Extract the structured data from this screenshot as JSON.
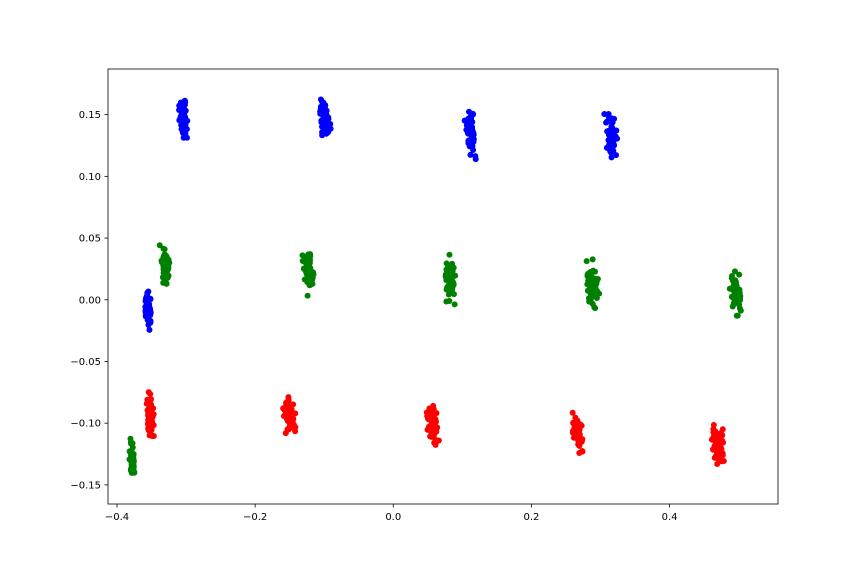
{
  "chart_data": {
    "type": "scatter",
    "title": "",
    "xlabel": "",
    "ylabel": "",
    "xlim": [
      -0.413,
      0.557
    ],
    "ylim": [
      -0.1655,
      0.187
    ],
    "grid": false,
    "legend": "none",
    "x_ticks": [
      "−0.4",
      "−0.2",
      "0.0",
      "0.2",
      "0.4"
    ],
    "x_tick_values": [
      -0.4,
      -0.2,
      0.0,
      0.2,
      0.4
    ],
    "y_ticks": [
      "−0.15",
      "−0.10",
      "−0.05",
      "0.00",
      "0.05",
      "0.10",
      "0.15"
    ],
    "y_tick_values": [
      -0.15,
      -0.1,
      -0.05,
      0.0,
      0.05,
      0.1,
      0.15
    ],
    "series": [
      {
        "color": "#0000ff",
        "clusters": [
          {
            "x": -0.304,
            "y": 0.148,
            "x_spread": 0.006,
            "y_spread": 0.018
          },
          {
            "x": -0.1,
            "y": 0.147,
            "x_spread": 0.008,
            "y_spread": 0.016
          },
          {
            "x": 0.112,
            "y": 0.137,
            "x_spread": 0.008,
            "y_spread": 0.02
          },
          {
            "x": 0.316,
            "y": 0.131,
            "x_spread": 0.008,
            "y_spread": 0.017
          },
          {
            "x": -0.355,
            "y": -0.006,
            "x_spread": 0.004,
            "y_spread": 0.016
          }
        ]
      },
      {
        "color": "#008000",
        "clusters": [
          {
            "x": -0.33,
            "y": 0.028,
            "x_spread": 0.006,
            "y_spread": 0.016
          },
          {
            "x": -0.124,
            "y": 0.024,
            "x_spread": 0.008,
            "y_spread": 0.018
          },
          {
            "x": 0.082,
            "y": 0.017,
            "x_spread": 0.008,
            "y_spread": 0.018
          },
          {
            "x": 0.289,
            "y": 0.012,
            "x_spread": 0.008,
            "y_spread": 0.018
          },
          {
            "x": 0.496,
            "y": 0.004,
            "x_spread": 0.008,
            "y_spread": 0.018
          },
          {
            "x": -0.378,
            "y": -0.128,
            "x_spread": 0.004,
            "y_spread": 0.016
          }
        ]
      },
      {
        "color": "#ff0000",
        "clusters": [
          {
            "x": -0.352,
            "y": -0.092,
            "x_spread": 0.006,
            "y_spread": 0.016
          },
          {
            "x": -0.15,
            "y": -0.097,
            "x_spread": 0.009,
            "y_spread": 0.017
          },
          {
            "x": 0.057,
            "y": -0.102,
            "x_spread": 0.008,
            "y_spread": 0.016
          },
          {
            "x": 0.266,
            "y": -0.108,
            "x_spread": 0.008,
            "y_spread": 0.016
          },
          {
            "x": 0.471,
            "y": -0.117,
            "x_spread": 0.009,
            "y_spread": 0.016
          }
        ]
      }
    ]
  }
}
